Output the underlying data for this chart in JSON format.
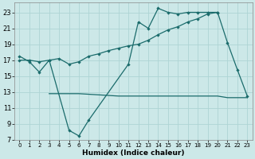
{
  "xlabel": "Humidex (Indice chaleur)",
  "bg_color": "#cce8e8",
  "line_color": "#1a6b6b",
  "grid_color": "#aed4d4",
  "xlim": [
    -0.5,
    23.5
  ],
  "ylim": [
    7,
    24.2
  ],
  "yticks": [
    7,
    9,
    11,
    13,
    15,
    17,
    19,
    21,
    23
  ],
  "xticks": [
    0,
    1,
    2,
    3,
    4,
    5,
    6,
    7,
    8,
    9,
    10,
    11,
    12,
    13,
    14,
    15,
    16,
    17,
    18,
    19,
    20,
    21,
    22,
    23
  ],
  "curve1_x": [
    0,
    1,
    2,
    3,
    5,
    6,
    7,
    11,
    12,
    13,
    14,
    15,
    16,
    17,
    18,
    19,
    20,
    21,
    22,
    23
  ],
  "curve1_y": [
    17.5,
    16.8,
    15.5,
    17.0,
    8.2,
    7.5,
    9.5,
    16.5,
    21.8,
    21.0,
    23.5,
    23.0,
    22.8,
    23.0,
    23.0,
    23.0,
    23.0,
    19.2,
    15.8,
    12.5
  ],
  "curve2_x": [
    0,
    1,
    2,
    3,
    4,
    5,
    6,
    7,
    8,
    9,
    10,
    11,
    12,
    13,
    14,
    15,
    16,
    17,
    18,
    19,
    20
  ],
  "curve2_y": [
    17.0,
    17.0,
    16.8,
    17.0,
    17.2,
    16.5,
    16.8,
    17.5,
    17.8,
    18.2,
    18.5,
    18.8,
    19.0,
    19.5,
    20.2,
    20.8,
    21.2,
    21.8,
    22.2,
    22.8,
    23.0
  ],
  "flat_x": [
    3,
    4,
    5,
    6,
    10,
    11,
    12,
    13,
    14,
    15,
    16,
    17,
    18,
    19,
    20,
    21,
    22,
    23
  ],
  "flat_y": [
    12.8,
    12.8,
    12.8,
    12.8,
    12.5,
    12.5,
    12.5,
    12.5,
    12.5,
    12.5,
    12.5,
    12.5,
    12.5,
    12.5,
    12.5,
    12.3,
    12.3,
    12.3
  ]
}
